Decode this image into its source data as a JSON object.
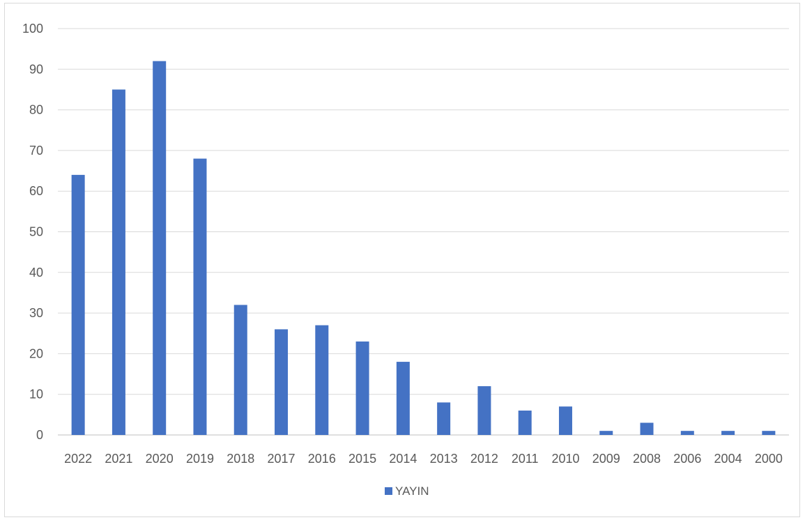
{
  "chart_data": {
    "type": "bar",
    "categories": [
      "2022",
      "2021",
      "2020",
      "2019",
      "2018",
      "2017",
      "2016",
      "2015",
      "2014",
      "2013",
      "2012",
      "2011",
      "2010",
      "2009",
      "2008",
      "2006",
      "2004",
      "2000"
    ],
    "series": [
      {
        "name": "YAYIN",
        "values": [
          64,
          85,
          92,
          68,
          32,
          26,
          27,
          23,
          18,
          8,
          12,
          6,
          7,
          1,
          3,
          1,
          1,
          1
        ],
        "color": "#4472c4"
      }
    ],
    "title": "",
    "xlabel": "",
    "ylabel": "",
    "ylim": [
      0,
      100
    ],
    "yticks": [
      0,
      10,
      20,
      30,
      40,
      50,
      60,
      70,
      80,
      90,
      100
    ],
    "grid": true,
    "legend_position": "bottom"
  }
}
